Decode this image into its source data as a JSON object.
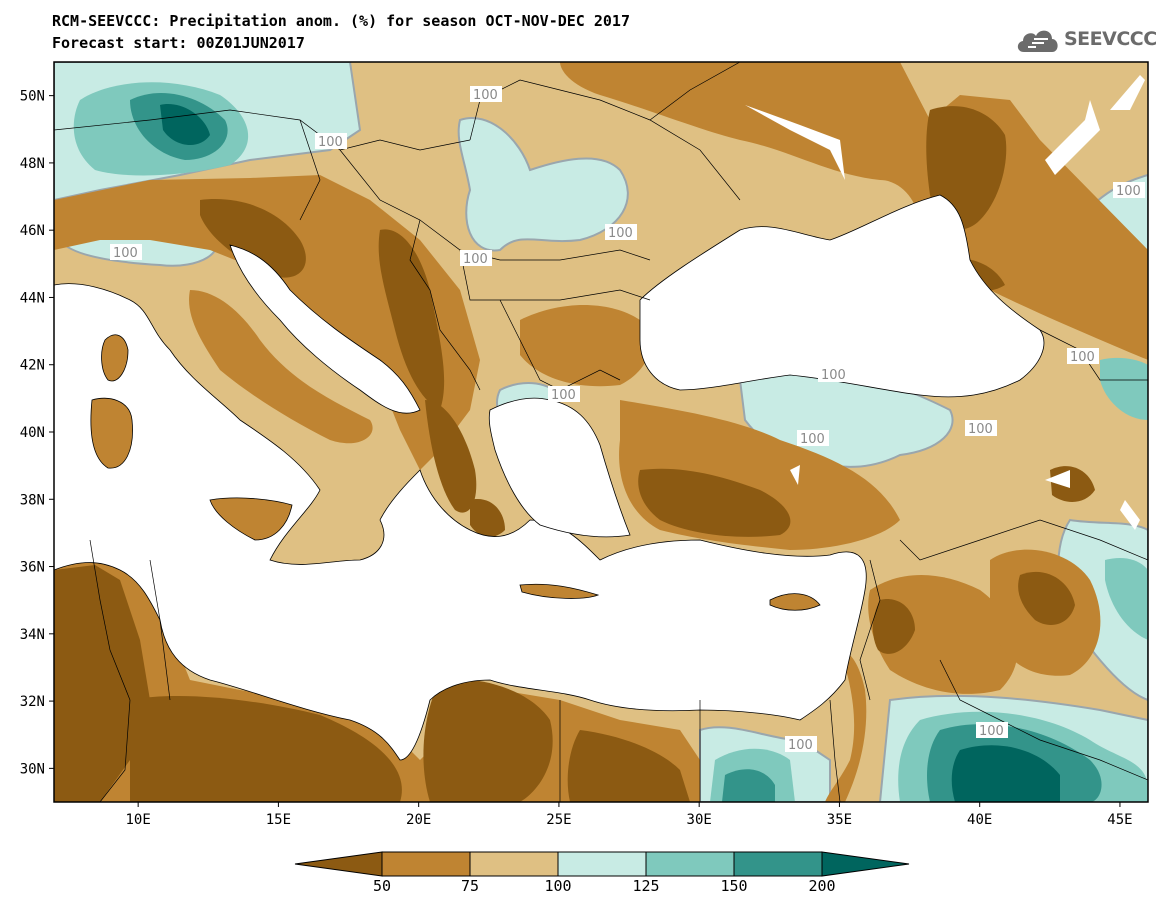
{
  "title": {
    "line1": "RCM-SEEVCCC: Precipitation anom. (%) for season OCT-NOV-DEC 2017",
    "line2": "Forecast start: 00Z01JUN2017"
  },
  "logo": {
    "text": "SEEVCCC",
    "icon": "cloud-logo-icon"
  },
  "axes": {
    "lat_labels": [
      "50N",
      "48N",
      "46N",
      "44N",
      "42N",
      "40N",
      "38N",
      "36N",
      "34N",
      "32N",
      "30N"
    ],
    "lon_labels": [
      "10E",
      "15E",
      "20E",
      "25E",
      "30E",
      "35E",
      "40E",
      "45E"
    ],
    "lat_range": [
      29,
      51
    ],
    "lon_range": [
      7,
      46
    ]
  },
  "contour_labels": [
    "100",
    "100",
    "100",
    "100",
    "100",
    "100",
    "100",
    "100",
    "100",
    "100",
    "100",
    "100",
    "100"
  ],
  "colorbar": {
    "labels": [
      "50",
      "75",
      "100",
      "125",
      "150",
      "200"
    ],
    "colors": [
      "#8c5a12",
      "#bf8432",
      "#dfc083",
      "#c8ebe4",
      "#7fc9bd",
      "#33948a",
      "#00655e"
    ]
  },
  "colors": {
    "sea": "#ffffff",
    "anom_lt_50": "#8c5a12",
    "anom_50_75": "#bf8432",
    "anom_75_100": "#dfc083",
    "anom_100_125": "#c8ebe4",
    "anom_125_150": "#7fc9bd",
    "anom_150_200": "#33948a",
    "anom_gt_200": "#00655e"
  }
}
